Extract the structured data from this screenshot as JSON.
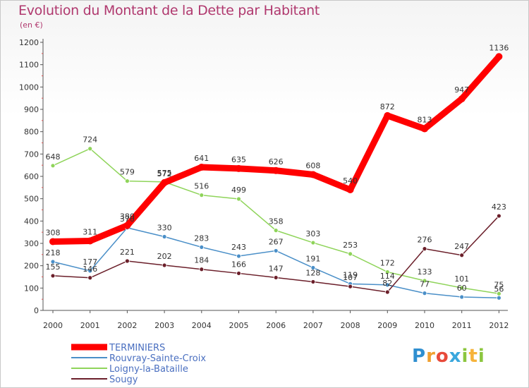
{
  "title": "Evolution du Montant de la Dette par Habitant",
  "subtitle": "(en €)",
  "brand": {
    "p": "P",
    "r": "r",
    "o": "o",
    "x": "x",
    "i": "i",
    "t": "t",
    "i2": "i"
  },
  "chart_data": {
    "type": "line",
    "x": [
      "2000",
      "2001",
      "2002",
      "2003",
      "2004",
      "2005",
      "2006",
      "2007",
      "2008",
      "2009",
      "2010",
      "2011",
      "2012"
    ],
    "ylim": [
      0,
      1200
    ],
    "yticks": [
      0,
      100,
      200,
      300,
      400,
      500,
      600,
      700,
      800,
      900,
      1000,
      1100,
      1200
    ],
    "grid": false,
    "legend_position": "bottom-left",
    "series": [
      {
        "name": "TERMINIERS",
        "color": "#ff0000",
        "values": [
          308,
          311,
          380,
          572,
          641,
          635,
          626,
          608,
          540,
          872,
          813,
          947,
          1136
        ]
      },
      {
        "name": "Rouvray-Sainte-Croix",
        "color": "#4a8fc8",
        "values": [
          218,
          177,
          370,
          330,
          283,
          243,
          267,
          191,
          119,
          114,
          77,
          60,
          56
        ]
      },
      {
        "name": "Loigny-la-Bataille",
        "color": "#8fd45a",
        "values": [
          648,
          724,
          579,
          575,
          516,
          499,
          358,
          303,
          253,
          172,
          133,
          101,
          75
        ]
      },
      {
        "name": "Sougy",
        "color": "#6b1f2a",
        "values": [
          155,
          146,
          221,
          202,
          184,
          166,
          147,
          128,
          107,
          82,
          276,
          247,
          423
        ]
      }
    ]
  }
}
